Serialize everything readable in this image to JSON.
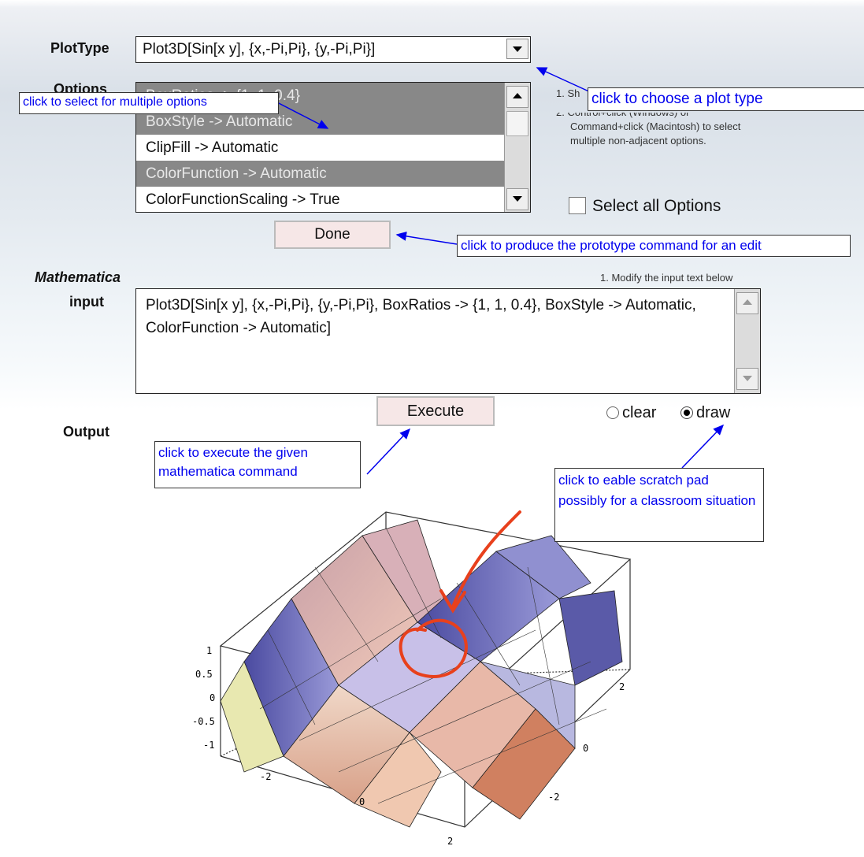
{
  "plot_type": {
    "label": "PlotType",
    "value": "Plot3D[Sin[x y], {x,-Pi,Pi}, {y,-Pi,Pi}]"
  },
  "options": {
    "label": "Options",
    "items": [
      {
        "label": "BoxRatios -> {1, 1, 0.4}",
        "selected": true
      },
      {
        "label": "BoxStyle -> Automatic",
        "selected": true
      },
      {
        "label": "ClipFill -> Automatic",
        "selected": false
      },
      {
        "label": "ColorFunction -> Automatic",
        "selected": true
      },
      {
        "label": "ColorFunctionScaling -> True",
        "selected": false
      }
    ],
    "instruction_1": "1. Sh",
    "instruction_2": "2. Control+click (Windows) or",
    "instruction_3": "Command+click (Macintosh)  to select",
    "instruction_4": "multiple non-adjacent options.",
    "select_all_label": "Select all Options",
    "done_label": "Done"
  },
  "input": {
    "label_italic": "Mathematica",
    "label": "input",
    "hint": "1. Modify the input text below",
    "value": "Plot3D[Sin[x y], {x,-Pi,Pi}, {y,-Pi,Pi}, BoxRatios -> {1, 1, 0.4}, BoxStyle -> Automatic, ColorFunction -> Automatic]"
  },
  "execute_label": "Execute",
  "output_label": "Output",
  "mode": {
    "clear_label": "clear",
    "draw_label": "draw",
    "selected": "draw"
  },
  "annotations": {
    "multi_select": "click to select for multiple options",
    "plot_type": "click to choose a plot type",
    "done": "click to produce the prototype command for an edit",
    "execute": "click to execute the given mathematica command",
    "scratch": "click to eable scratch pad possibly for a classroom situation"
  },
  "plot_axes": {
    "z_ticks": [
      "1",
      "0.5",
      "0",
      "-0.5",
      "-1"
    ],
    "x_ticks": [
      "-2",
      "0",
      "2"
    ],
    "y_ticks": [
      "2",
      "0",
      "-2"
    ]
  },
  "colors": {
    "annotation_text": "#0000ee",
    "selected_option_bg": "#888888",
    "scratch_pen": "#e8401c"
  },
  "icons": [
    "dropdown-arrow-icon",
    "scroll-up-icon",
    "scroll-down-icon",
    "checkbox-icon",
    "radio-icon"
  ]
}
